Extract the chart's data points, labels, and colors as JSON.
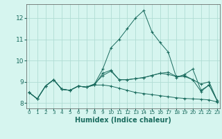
{
  "xlabel": "Humidex (Indice chaleur)",
  "background_color": "#d6f5ef",
  "grid_color": "#b0ddd4",
  "line_color": "#1a6b5e",
  "yticks": [
    8,
    9,
    10,
    11,
    12
  ],
  "xticks": [
    0,
    1,
    2,
    3,
    4,
    5,
    6,
    7,
    8,
    9,
    10,
    11,
    12,
    13,
    14,
    15,
    16,
    17,
    18,
    19,
    20,
    21,
    22,
    23
  ],
  "xlim": [
    -0.3,
    23.3
  ],
  "ylim": [
    7.75,
    12.65
  ],
  "lines": [
    [
      8.5,
      8.2,
      8.8,
      9.1,
      8.65,
      8.6,
      8.8,
      8.75,
      8.9,
      9.6,
      10.6,
      11.0,
      11.5,
      12.0,
      12.35,
      11.35,
      10.85,
      10.4,
      9.2,
      9.35,
      9.6,
      8.6,
      8.85,
      8.1
    ],
    [
      8.5,
      8.2,
      8.8,
      9.1,
      8.65,
      8.6,
      8.8,
      8.75,
      8.85,
      9.4,
      9.55,
      9.1,
      9.1,
      9.15,
      9.2,
      9.3,
      9.4,
      9.45,
      9.25,
      9.3,
      9.1,
      8.9,
      9.0,
      8.1
    ],
    [
      8.5,
      8.2,
      8.8,
      9.1,
      8.65,
      8.6,
      8.8,
      8.75,
      8.9,
      9.3,
      9.5,
      9.1,
      9.1,
      9.15,
      9.2,
      9.3,
      9.4,
      9.35,
      9.25,
      9.25,
      9.1,
      8.55,
      8.85,
      8.1
    ],
    [
      8.5,
      8.2,
      8.8,
      9.1,
      8.65,
      8.6,
      8.8,
      8.75,
      8.85,
      8.85,
      8.8,
      8.7,
      8.6,
      8.5,
      8.45,
      8.4,
      8.35,
      8.3,
      8.25,
      8.22,
      8.2,
      8.18,
      8.15,
      8.05
    ]
  ],
  "spine_color": "#555555",
  "tick_color": "#1a6b5e",
  "xlabel_fontsize": 7,
  "xlabel_fontweight": "bold",
  "ytick_fontsize": 6.5,
  "xtick_fontsize": 5.2
}
